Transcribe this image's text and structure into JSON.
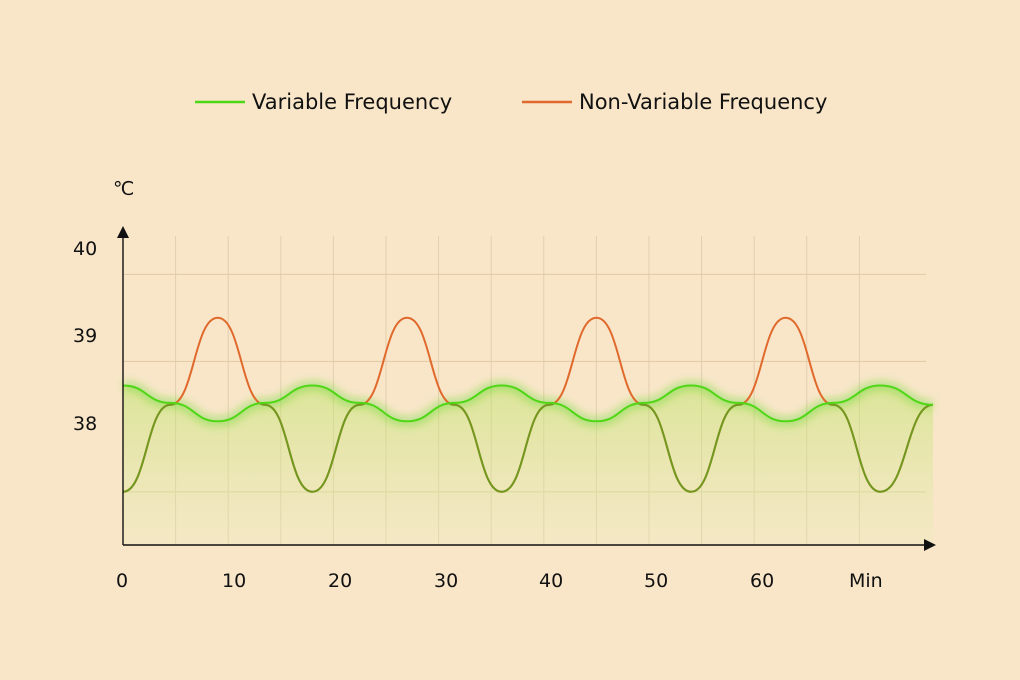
{
  "chart_data": {
    "type": "line",
    "title": "",
    "ylabel": "℃",
    "xlabel": "Min",
    "x_ticks": [
      "0",
      "10",
      "20",
      "30",
      "40",
      "50",
      "60"
    ],
    "y_ticks": [
      "38",
      "39",
      "40"
    ],
    "xlim": [
      0,
      77
    ],
    "ylim": [
      37,
      40.3
    ],
    "grid": true,
    "legend_position": "top-center",
    "series": [
      {
        "name": "Variable Frequency",
        "color": "#4fd616",
        "x": [
          0,
          4.5,
          9,
          13.5,
          18,
          22.5,
          27,
          31.5,
          36,
          40.5,
          45,
          49.5,
          54,
          58.5,
          63,
          67.5,
          72,
          77
        ],
        "values": [
          38.65,
          38.47,
          38.28,
          38.47,
          38.65,
          38.47,
          38.28,
          38.47,
          38.65,
          38.47,
          38.28,
          38.47,
          38.65,
          38.47,
          38.28,
          38.47,
          38.65,
          38.45
        ]
      },
      {
        "name": "Non-Variable Frequency",
        "color": "#e0692c",
        "x": [
          0,
          4.5,
          9,
          13.5,
          18,
          22.5,
          27,
          31.5,
          36,
          40.5,
          45,
          49.5,
          54,
          58.5,
          63,
          67.5,
          72,
          77
        ],
        "values": [
          37.55,
          38.45,
          39.35,
          38.45,
          37.55,
          38.45,
          39.35,
          38.45,
          37.55,
          38.45,
          39.35,
          38.45,
          37.55,
          38.45,
          39.35,
          38.45,
          37.55,
          38.45
        ]
      }
    ]
  }
}
